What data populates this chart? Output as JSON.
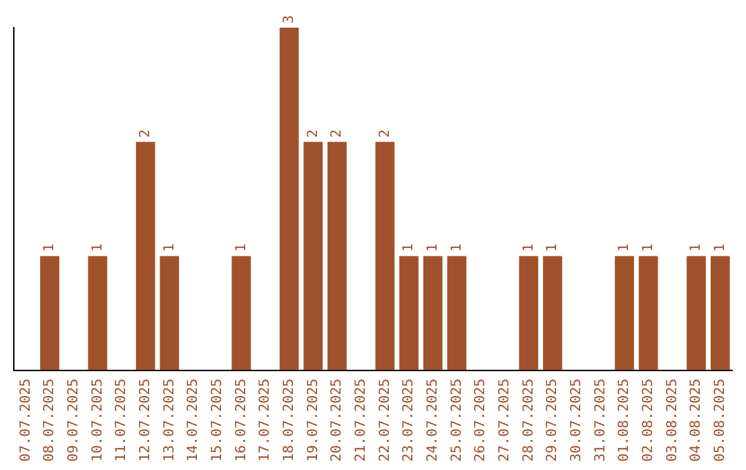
{
  "chart_data": {
    "type": "bar",
    "categories": [
      "07.07.2025",
      "08.07.2025",
      "09.07.2025",
      "10.07.2025",
      "11.07.2025",
      "12.07.2025",
      "13.07.2025",
      "14.07.2025",
      "15.07.2025",
      "16.07.2025",
      "17.07.2025",
      "18.07.2025",
      "19.07.2025",
      "20.07.2025",
      "21.07.2025",
      "22.07.2025",
      "23.07.2025",
      "24.07.2025",
      "25.07.2025",
      "26.07.2025",
      "27.07.2025",
      "28.07.2025",
      "29.07.2025",
      "30.07.2025",
      "31.07.2025",
      "01.08.2025",
      "02.08.2025",
      "03.08.2025",
      "04.08.2025",
      "05.08.2025"
    ],
    "values": [
      0,
      1,
      0,
      1,
      0,
      2,
      1,
      0,
      0,
      1,
      0,
      3,
      2,
      2,
      0,
      2,
      1,
      1,
      1,
      0,
      0,
      1,
      1,
      0,
      0,
      1,
      1,
      0,
      1,
      1
    ],
    "value_labels": [
      null,
      "1",
      null,
      "1",
      null,
      "2",
      "1",
      null,
      null,
      "1",
      null,
      "3",
      "2",
      "2",
      null,
      "2",
      "1",
      "1",
      "1",
      null,
      null,
      "1",
      "1",
      null,
      null,
      "1",
      "1",
      null,
      "1",
      "1"
    ],
    "color": "#a0522d",
    "grid": false,
    "legend": false,
    "tick_labels": "x"
  }
}
